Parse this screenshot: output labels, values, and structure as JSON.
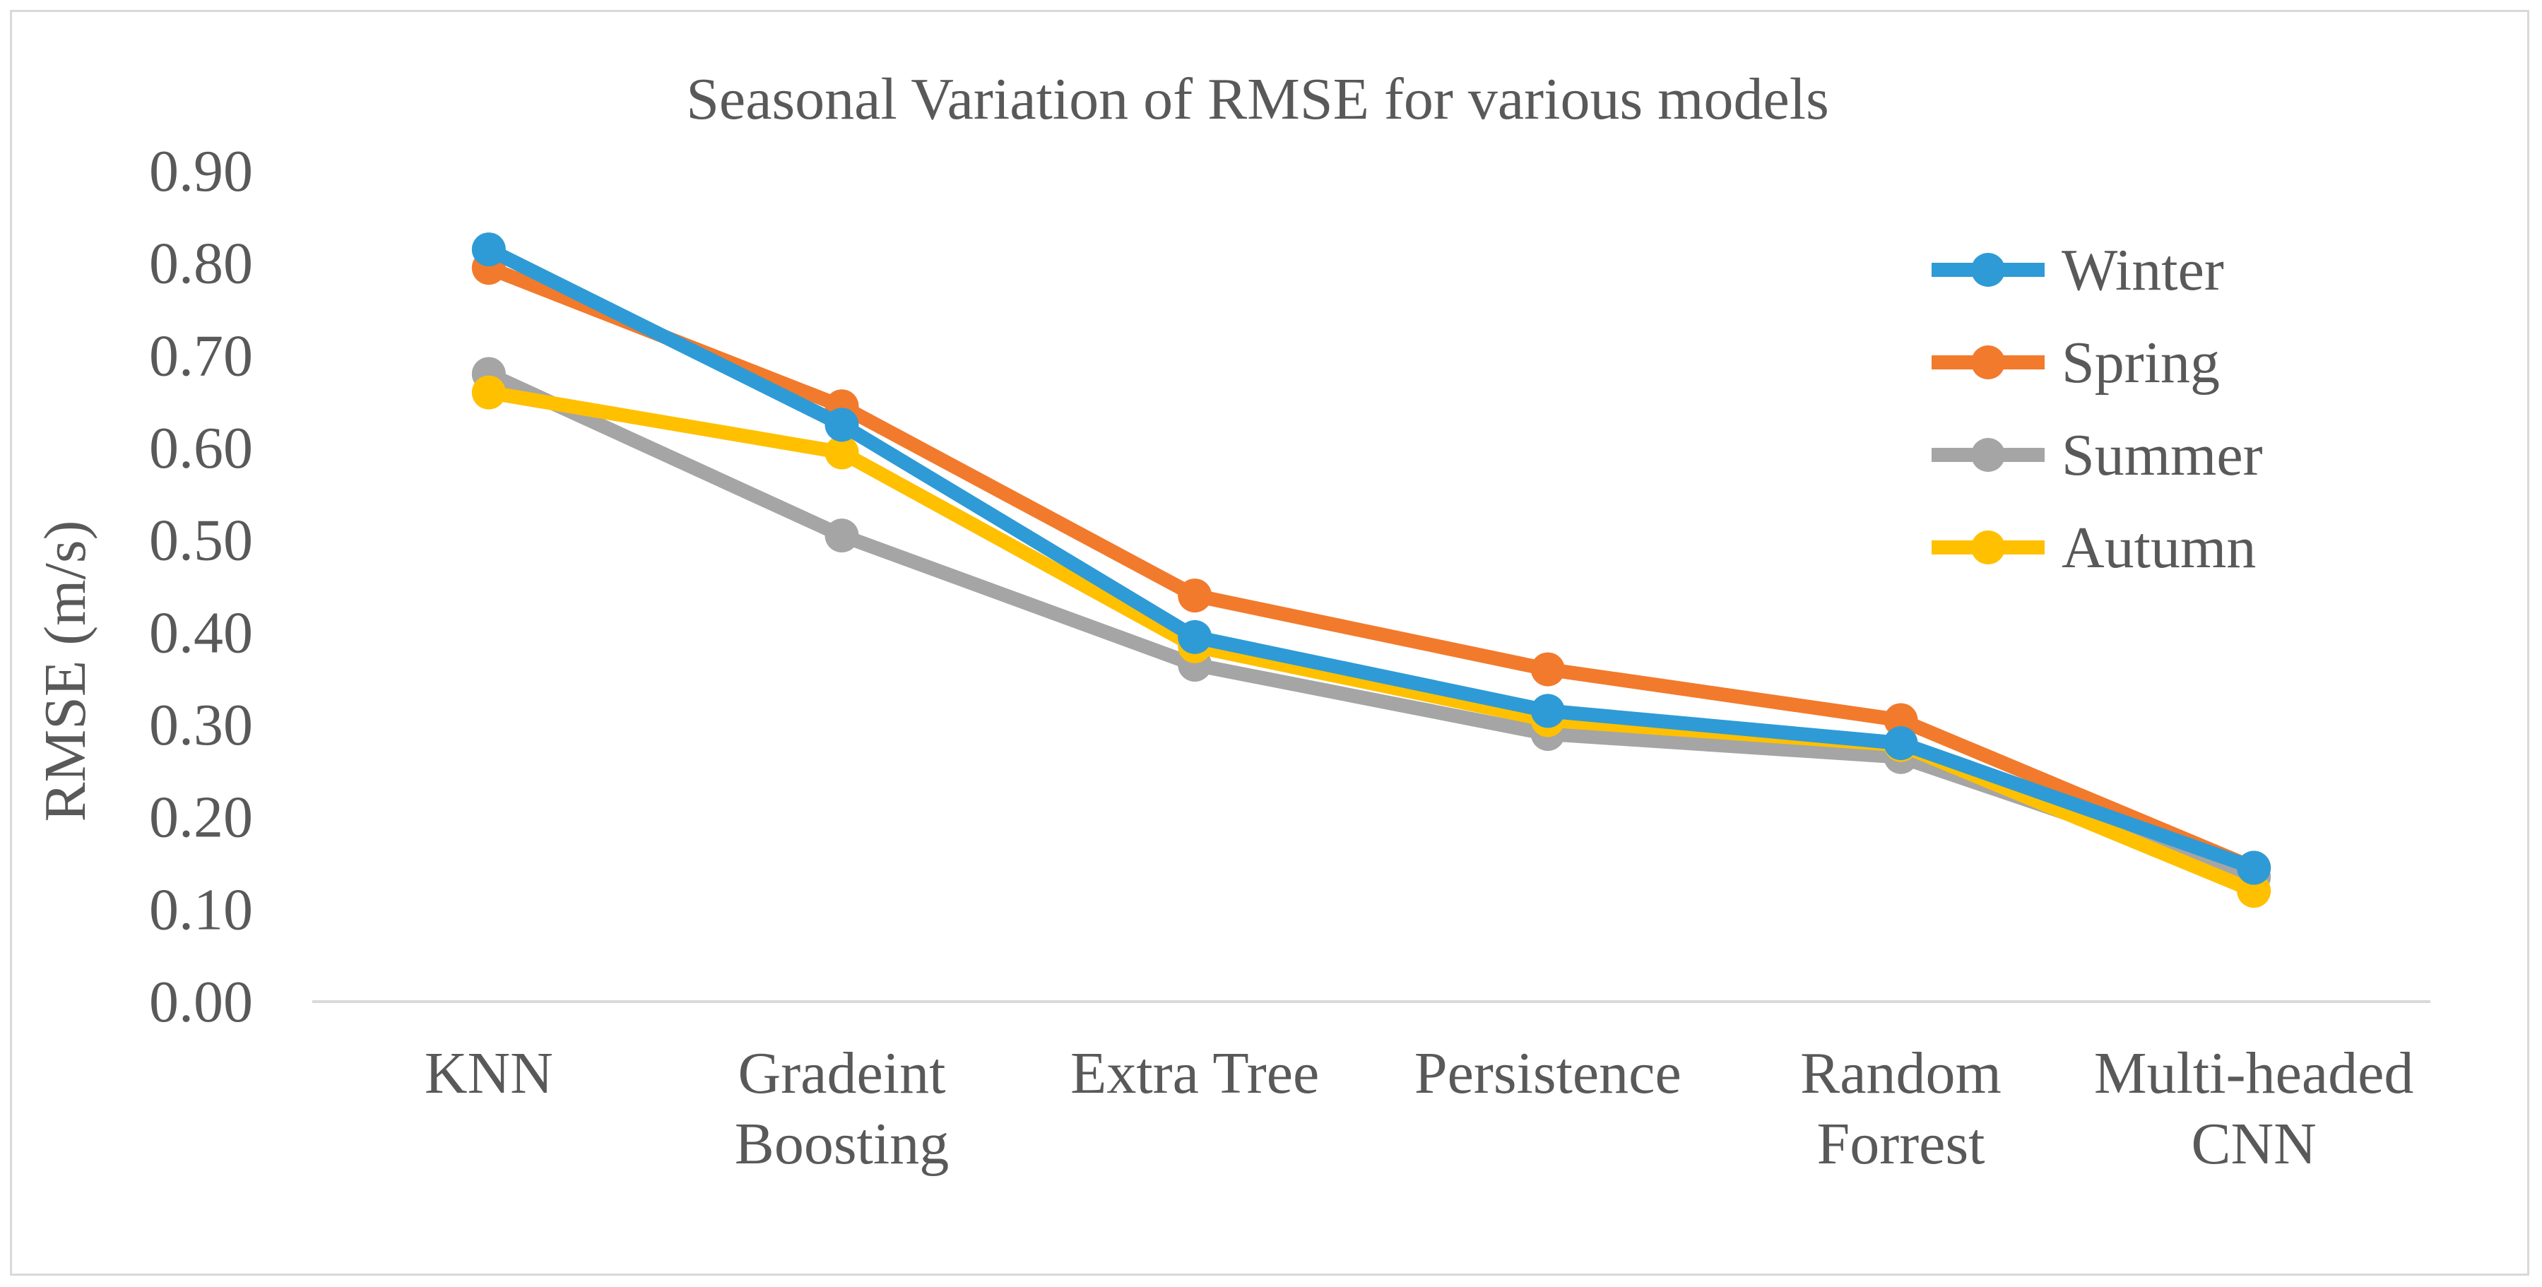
{
  "chart_data": {
    "type": "line",
    "title": "Seasonal Variation of RMSE for various models",
    "xlabel": "",
    "ylabel": "RMSE (m/s)",
    "ylim": [
      0,
      0.9
    ],
    "yticks": [
      "0.00",
      "0.10",
      "0.20",
      "0.30",
      "0.40",
      "0.50",
      "0.60",
      "0.70",
      "0.80",
      "0.90"
    ],
    "categories": [
      [
        "KNN"
      ],
      [
        "Gradeint",
        "Boosting"
      ],
      [
        "Extra Tree"
      ],
      [
        "Persistence"
      ],
      [
        "Random",
        "Forrest"
      ],
      [
        "Multi-headed",
        "CNN"
      ]
    ],
    "series": [
      {
        "name": "Winter",
        "color": "#2e9bd6",
        "values": [
          0.815,
          0.625,
          0.395,
          0.315,
          0.28,
          0.145
        ]
      },
      {
        "name": "Spring",
        "color": "#f27a2c",
        "values": [
          0.795,
          0.645,
          0.44,
          0.36,
          0.305,
          0.145
        ]
      },
      {
        "name": "Summer",
        "color": "#a5a5a5",
        "values": [
          0.68,
          0.505,
          0.365,
          0.29,
          0.265,
          0.135
        ]
      },
      {
        "name": "Autumn",
        "color": "#ffc000",
        "values": [
          0.66,
          0.595,
          0.385,
          0.305,
          0.278,
          0.12
        ]
      }
    ],
    "legend_position": "top-right",
    "grid": false
  }
}
